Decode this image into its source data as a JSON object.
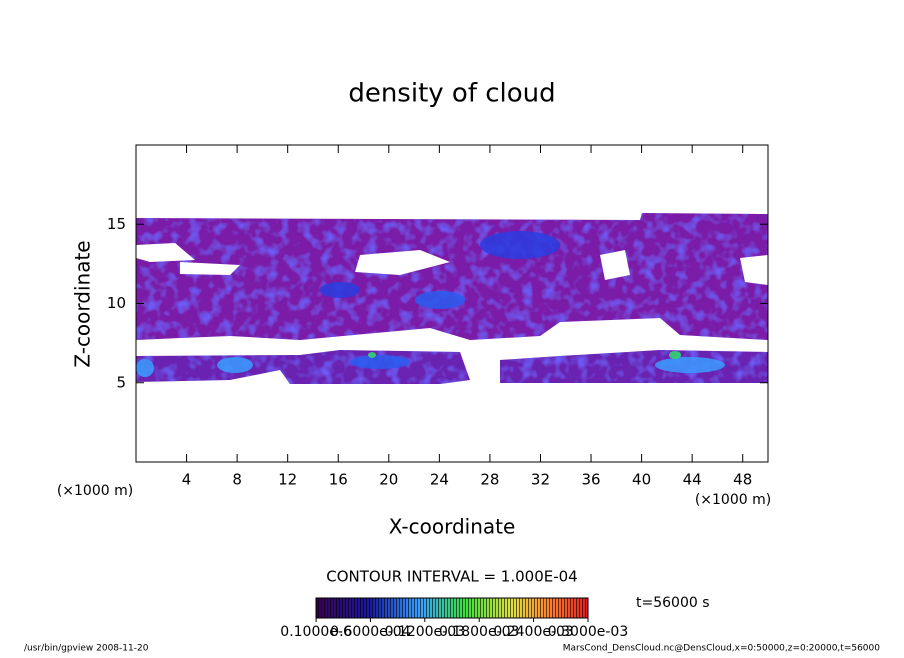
{
  "chart_data": {
    "type": "contour",
    "title": "density of cloud",
    "xlabel": "X-coordinate",
    "ylabel": "Z-coordinate",
    "xunit": "(×1000 m)",
    "yunit": "(×1000 m)",
    "xlim": [
      0,
      50
    ],
    "xticks": [
      4,
      8,
      12,
      16,
      20,
      24,
      28,
      32,
      36,
      40,
      44,
      48
    ],
    "ylim": [
      0,
      20
    ],
    "yticks": [
      5,
      10,
      15
    ],
    "contour_interval": "CONTOUR INTERVAL = 1.000E-04",
    "time": "t=56000 s",
    "colorbar": {
      "lim": [
        0,
        0.0003
      ],
      "ticks": [
        {
          "value": 1e-07,
          "label": "0.1000e-6"
        },
        {
          "value": 6e-05,
          "label": "0.6000e-04"
        },
        {
          "value": 0.00012,
          "label": "0.1200e-03"
        },
        {
          "value": 0.00018,
          "label": "0.1800e-03"
        },
        {
          "value": 0.00024,
          "label": "0.2400e-03"
        },
        {
          "value": 0.0003,
          "label": "0.3000e-03"
        }
      ]
    },
    "footer": {
      "left": "/usr/bin/gpview   2008-11-20",
      "right": "MarsCond_DensCloud.nc@DensCloud,x=0:50000,z=0:20000,t=56000"
    }
  }
}
